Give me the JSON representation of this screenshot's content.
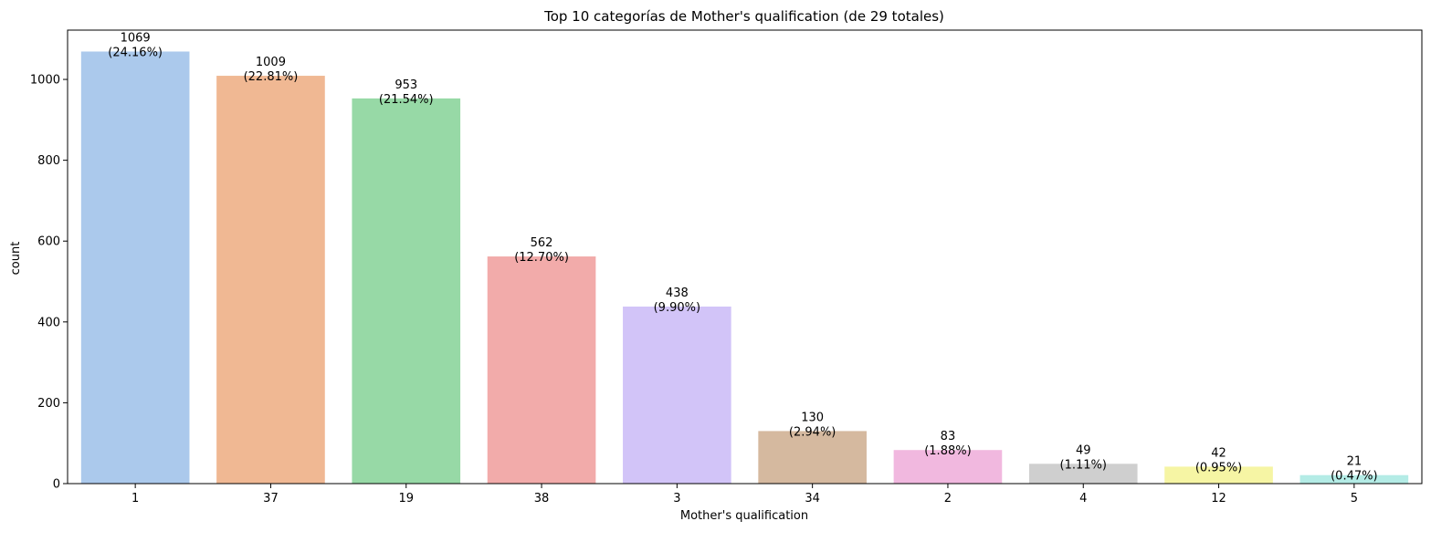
{
  "chart_data": {
    "type": "bar",
    "title": "Top 10 categorías de Mother's qualification (de 29 totales)",
    "xlabel": "Mother's qualification",
    "ylabel": "count",
    "categories": [
      "1",
      "37",
      "19",
      "38",
      "3",
      "34",
      "2",
      "4",
      "12",
      "5"
    ],
    "values": [
      1069,
      1009,
      953,
      562,
      438,
      130,
      83,
      49,
      42,
      21
    ],
    "percent_labels": [
      "(24.16%)",
      "(22.81%)",
      "(21.54%)",
      "(12.70%)",
      "(9.90%)",
      "(2.94%)",
      "(1.88%)",
      "(1.11%)",
      "(0.95%)",
      "(0.47%)"
    ],
    "colors": [
      "#abc9ec",
      "#f0b893",
      "#97d9a6",
      "#f2abaa",
      "#d2c4f8",
      "#d5b99f",
      "#f1b8df",
      "#cfcfcf",
      "#f6f5a4",
      "#b4ece6"
    ],
    "yticks": [
      0,
      200,
      400,
      600,
      800,
      1000
    ],
    "ylim": [
      0,
      1122
    ],
    "grid": false,
    "legend": false
  }
}
